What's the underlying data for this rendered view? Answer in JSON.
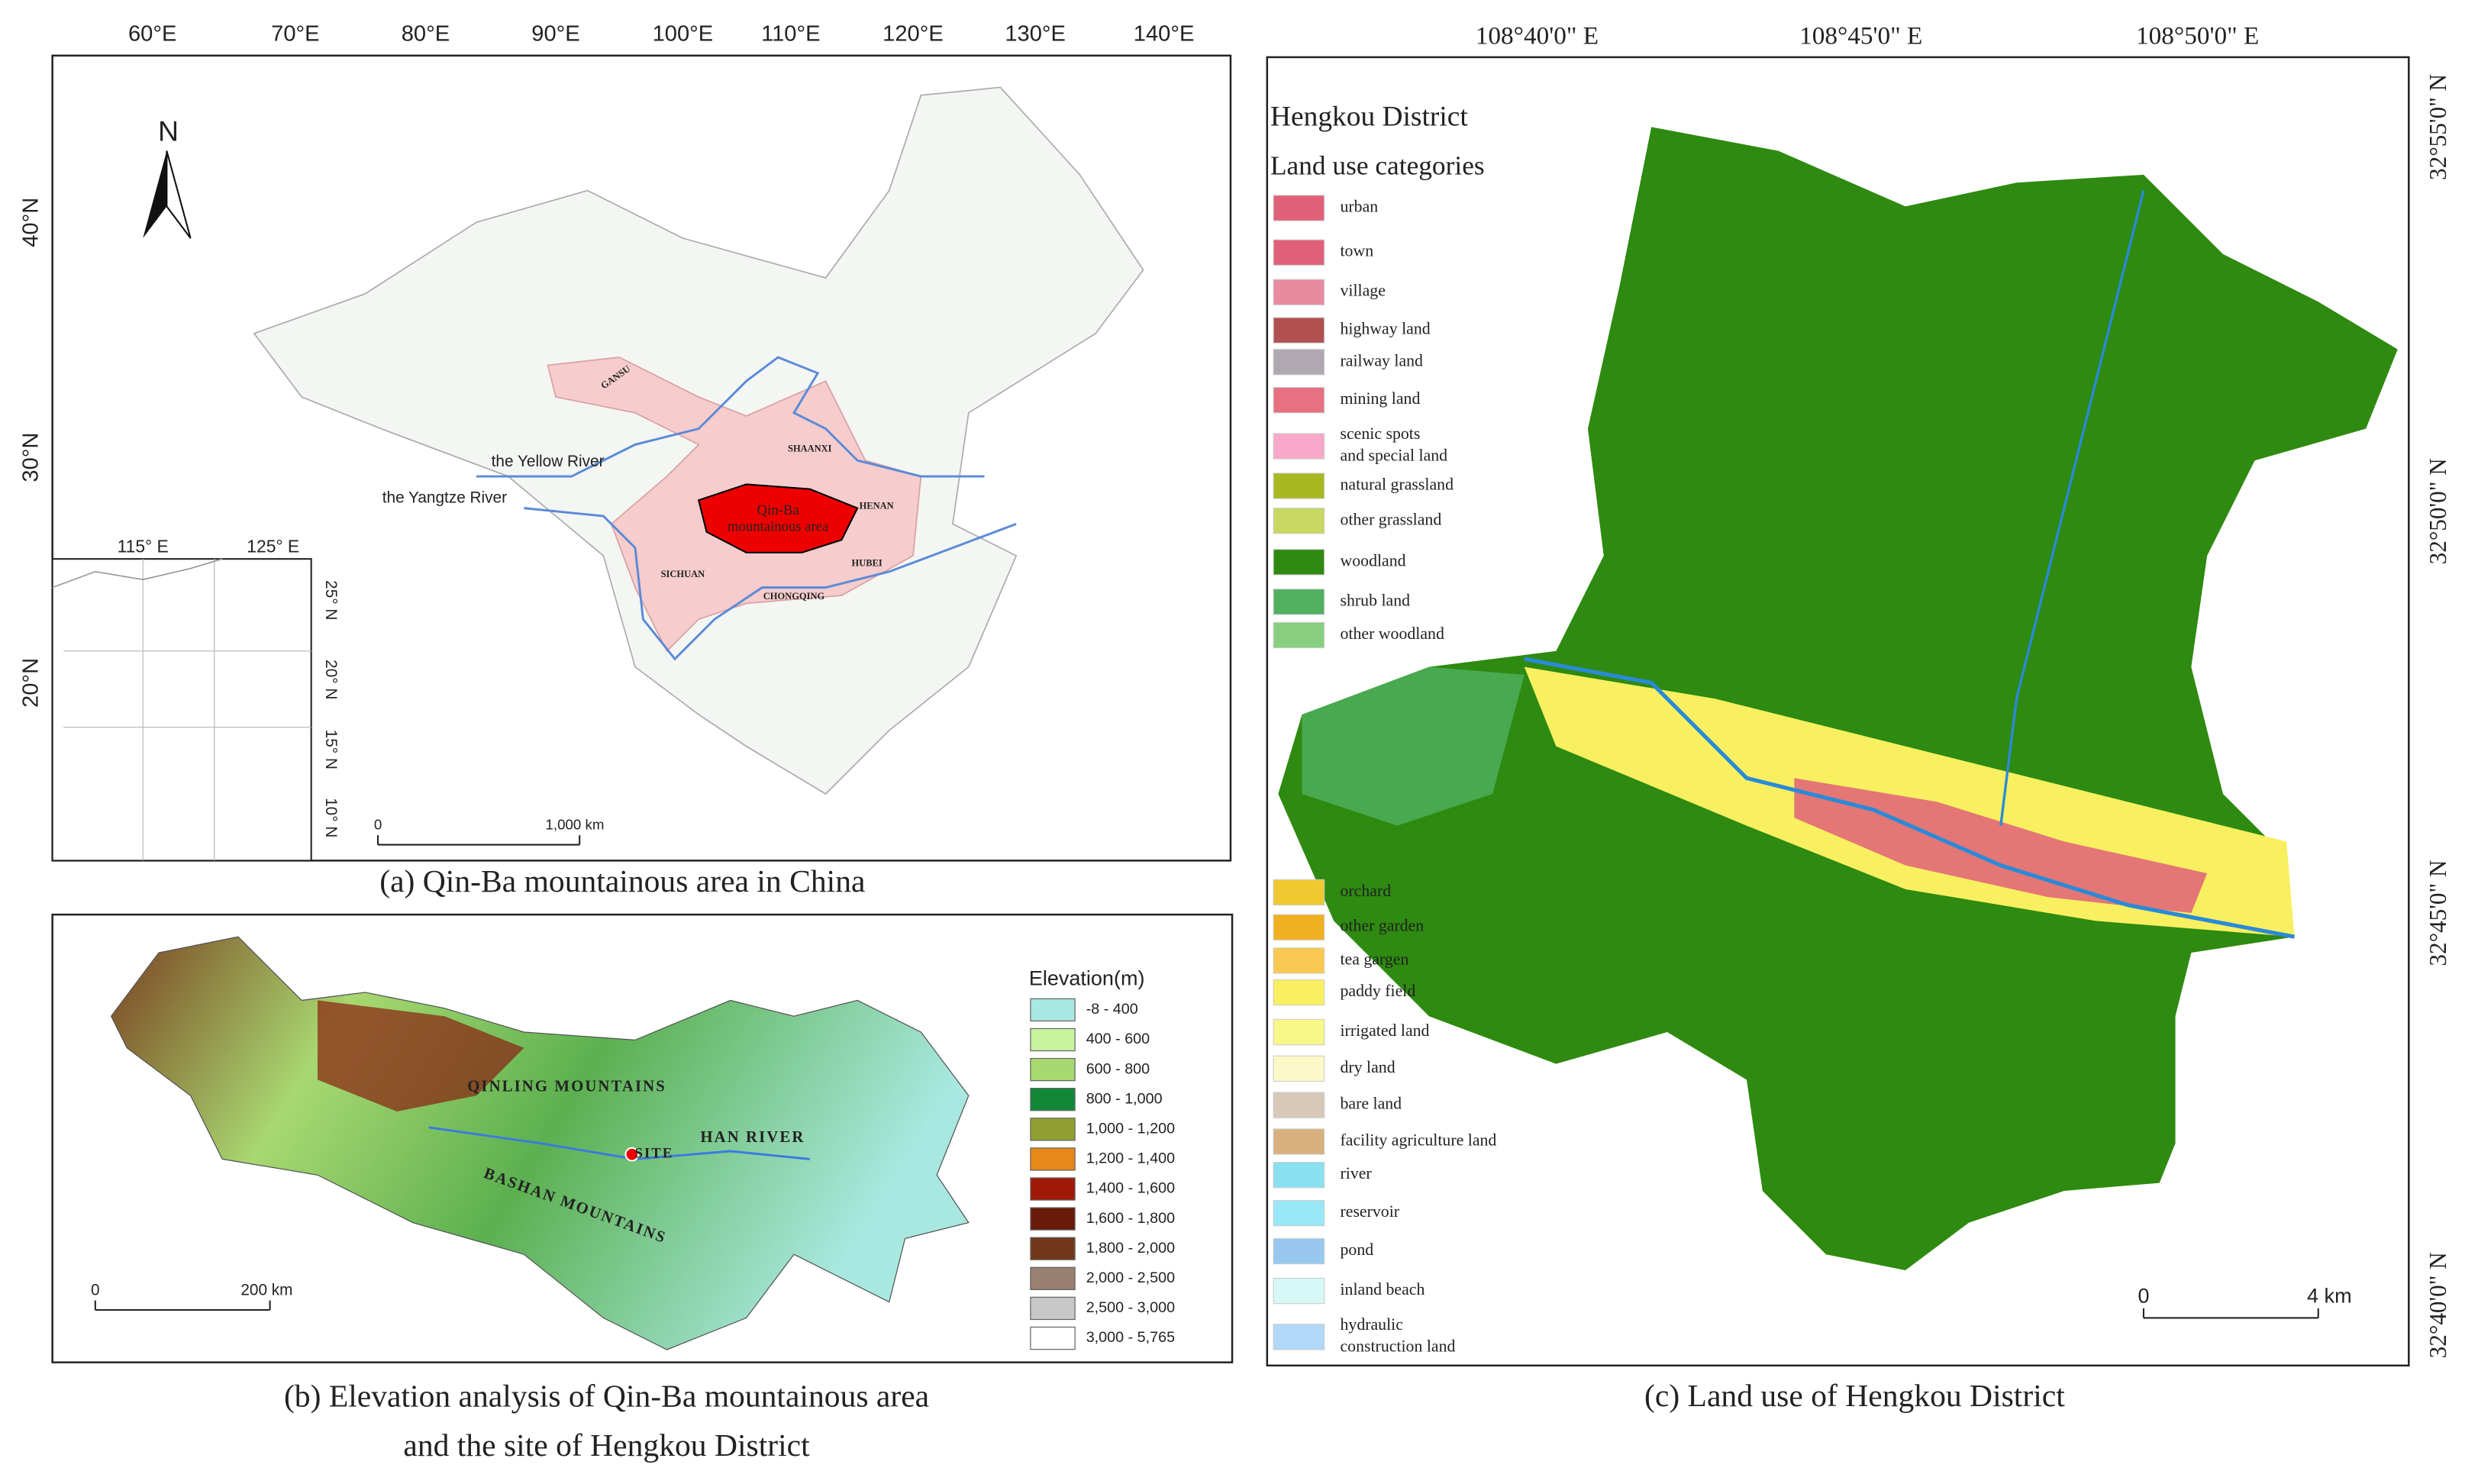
{
  "panel_a": {
    "caption": "(a) Qin-Ba mountainous area in China",
    "lon_labels": [
      "60°E",
      "70°E",
      "80°E",
      "90°E",
      "100°E",
      "110°E",
      "120°E",
      "130°E",
      "140°E"
    ],
    "lat_labels": [
      "40°N",
      "30°N",
      "20°N"
    ],
    "north": "N",
    "provinces": [
      "GANSU",
      "SHAANXI",
      "HENAN",
      "HUBEI",
      "SICHUAN",
      "CHONGQING"
    ],
    "area_label": "Qin-Ba\nmountainous area",
    "rivers": [
      "the Yellow River",
      "the Yangtze River"
    ],
    "inset_lon_labels": [
      "115° E",
      "125° E"
    ],
    "inset_lat_labels": [
      "25° N",
      "20° N",
      "15° N",
      "10° N"
    ],
    "scale_labels": [
      "0",
      "1,000 km"
    ]
  },
  "panel_b": {
    "caption": "(b) Elevation analysis of Qin-Ba mountainous area\nand the site of Hengkou District",
    "legend_title": "Elevation(m)",
    "legend": [
      {
        "label": "-8 - 400",
        "color": "#a8e8e0"
      },
      {
        "label": "400 - 600",
        "color": "#c8f4a0"
      },
      {
        "label": "600 - 800",
        "color": "#a8d870"
      },
      {
        "label": "800 - 1,000",
        "color": "#108838"
      },
      {
        "label": "1,000 - 1,200",
        "color": "#90a030"
      },
      {
        "label": "1,200 - 1,400",
        "color": "#e88818"
      },
      {
        "label": "1,400 - 1,600",
        "color": "#a01808"
      },
      {
        "label": "1,600 - 1,800",
        "color": "#6a1a0a"
      },
      {
        "label": "1,800 - 2,000",
        "color": "#703818"
      },
      {
        "label": "2,000 - 2,500",
        "color": "#9a8070"
      },
      {
        "label": "2,500 - 3,000",
        "color": "#c8c8c8"
      },
      {
        "label": "3,000 - 5,765",
        "color": "#ffffff"
      }
    ],
    "labels": [
      "QINLING MOUNTAINS",
      "HAN RIVER",
      "SITE",
      "BASHAN MOUNTAINS"
    ],
    "scale_labels": [
      "0",
      "200 km"
    ]
  },
  "panel_c": {
    "caption": "(c) Land use of Hengkou District",
    "title": "Hengkou District",
    "legend_title": "Land use categories",
    "lon_labels": [
      "108°40'0\" E",
      "108°45'0\" E",
      "108°50'0\" E"
    ],
    "lat_labels": [
      "32°55'0\" N",
      "32°50'0\" N",
      "32°45'0\" N",
      "32°40'0\" N"
    ],
    "categories": [
      {
        "label": "urban",
        "color": "#e0607a"
      },
      {
        "label": "town",
        "color": "#e0607a"
      },
      {
        "label": "village",
        "color": "#e88aa0"
      },
      {
        "label": "highway land",
        "color": "#b05050"
      },
      {
        "label": "railway land",
        "color": "#b0a8b0"
      },
      {
        "label": "mining land",
        "color": "#e87080"
      },
      {
        "label": "scenic spots\nand special land",
        "color": "#f8a8c8"
      },
      {
        "label": "natural grassland",
        "color": "#a8b820"
      },
      {
        "label": "other grassland",
        "color": "#c8d860"
      },
      {
        "label": "woodland",
        "color": "#2e8a10"
      },
      {
        "label": "shrub land",
        "color": "#50b060"
      },
      {
        "label": "other woodland",
        "color": "#88d080"
      },
      {
        "label": "orchard",
        "color": "#f0c830"
      },
      {
        "label": "other garden",
        "color": "#f0b020"
      },
      {
        "label": "tea gargen",
        "color": "#f8c850"
      },
      {
        "label": "paddy field",
        "color": "#f8f060"
      },
      {
        "label": "irrigated land",
        "color": "#f8f888"
      },
      {
        "label": "dry land",
        "color": "#fcf8c8"
      },
      {
        "label": "bare land",
        "color": "#d8c8b8"
      },
      {
        "label": "facility agriculture land",
        "color": "#d8b080"
      },
      {
        "label": "river",
        "color": "#88e0f0"
      },
      {
        "label": "reservoir",
        "color": "#98e8f8"
      },
      {
        "label": "pond",
        "color": "#98c8f0"
      },
      {
        "label": "inland beach",
        "color": "#d8f8f8"
      },
      {
        "label": "hydraulic\nconstruction land",
        "color": "#b0d8f8"
      }
    ],
    "scale_labels": [
      "0",
      "4 km"
    ]
  }
}
